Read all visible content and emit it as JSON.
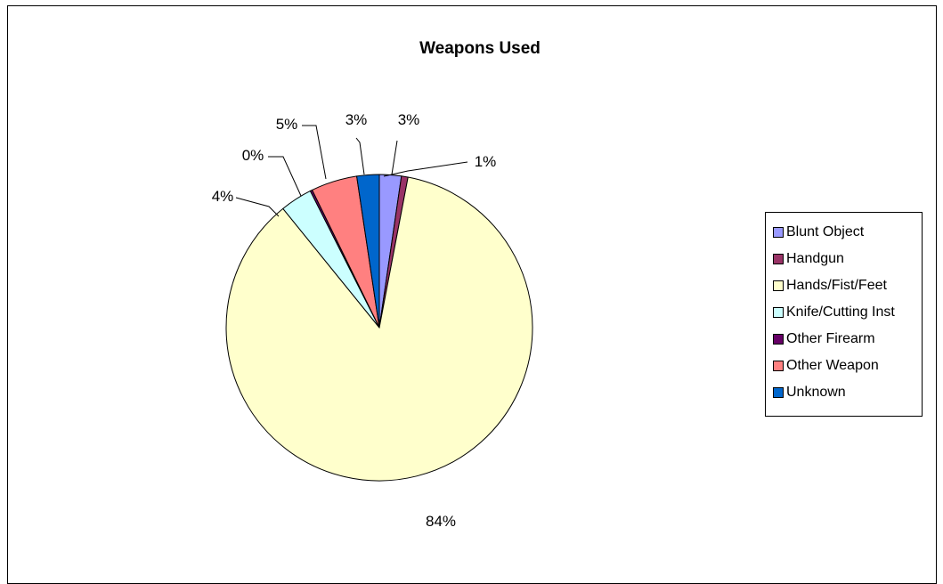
{
  "chart_data": {
    "type": "pie",
    "title": "Weapons Used",
    "legend_position": "right",
    "slices": [
      {
        "name": "Blunt Object",
        "value": 3,
        "label": "3%",
        "color": "#9999FF"
      },
      {
        "name": "Handgun",
        "value": 1,
        "label": "1%",
        "color": "#993366"
      },
      {
        "name": "Hands/Fist/Feet",
        "value": 84,
        "label": "84%",
        "color": "#FFFFCC"
      },
      {
        "name": "Knife/Cutting Inst",
        "value": 4,
        "label": "4%",
        "color": "#CCFFFF"
      },
      {
        "name": "Other Firearm",
        "value": 0,
        "label": "0%",
        "color": "#660066"
      },
      {
        "name": "Other Weapon",
        "value": 5,
        "label": "5%",
        "color": "#FF8080"
      },
      {
        "name": "Unknown",
        "value": 3,
        "label": "3%",
        "color": "#0066CC"
      }
    ]
  }
}
